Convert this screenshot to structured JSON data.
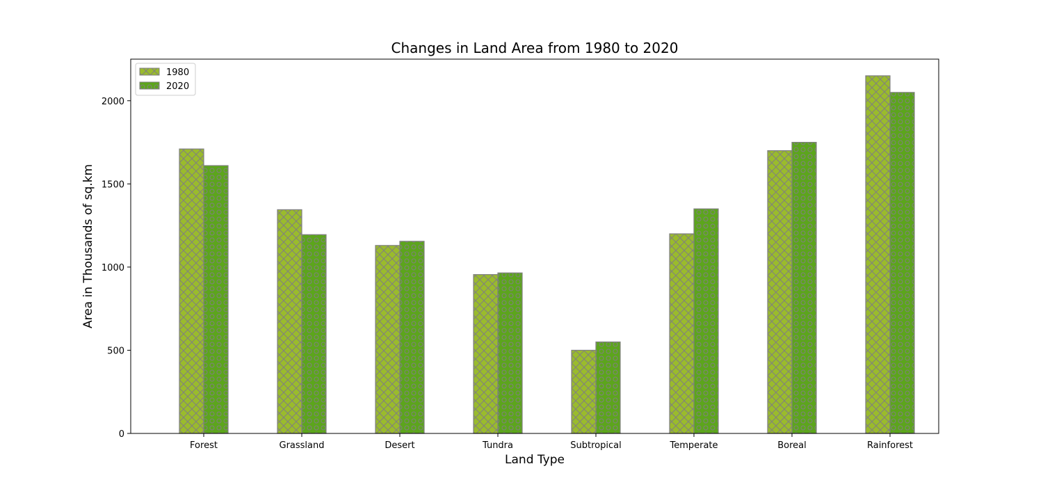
{
  "chart_data": {
    "type": "bar",
    "title": "Changes in Land Area from 1980 to 2020",
    "xlabel": "Land Type",
    "ylabel": "Area in Thousands of sq.km",
    "categories": [
      "Forest",
      "Grassland",
      "Desert",
      "Tundra",
      "Subtropical",
      "Temperate",
      "Boreal",
      "Rainforest"
    ],
    "series": [
      {
        "name": "1980",
        "values": [
          1710,
          1345,
          1130,
          955,
          500,
          1200,
          1700,
          2150
        ],
        "color": "#9abb2c",
        "hatch": "cross-hatch"
      },
      {
        "name": "2020",
        "values": [
          1610,
          1195,
          1155,
          965,
          550,
          1350,
          1750,
          2050
        ],
        "color": "#5ca51c",
        "hatch": "circles"
      }
    ],
    "ylim": [
      0,
      2250
    ],
    "yticks": [
      0,
      500,
      1000,
      1500,
      2000
    ],
    "edge_color": "#808080",
    "legend_position": "upper-left",
    "grid": false
  }
}
